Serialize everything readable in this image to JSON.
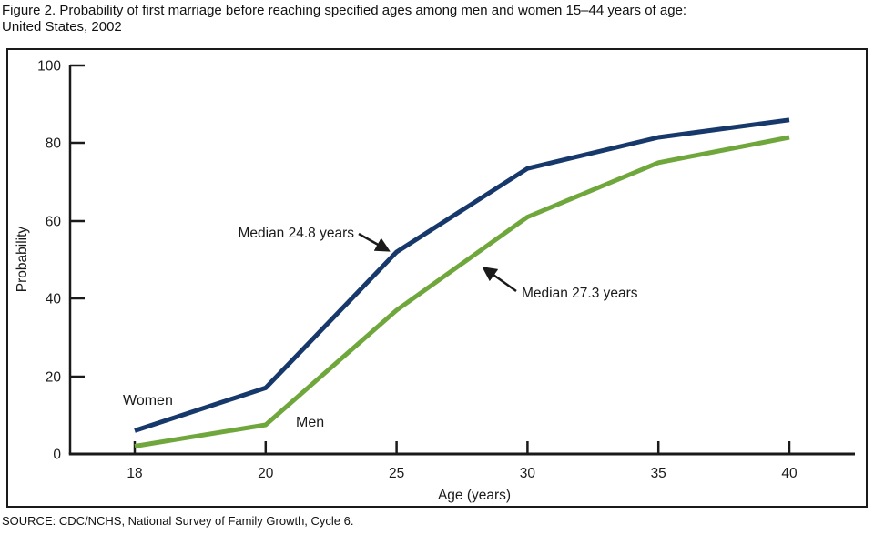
{
  "figure": {
    "title_line1": "Figure 2. Probability of first marriage before reaching specified ages among men and women 15–44 years of age:",
    "title_line2": "United States, 2002",
    "source": "SOURCE: CDC/NCHS, National Survey of Family Growth, Cycle 6."
  },
  "chart_data": {
    "type": "line",
    "title": "Figure 2. Probability of first marriage before reaching specified ages among men and women 15–44 years of age: United States, 2002",
    "xlabel": "Age (years)",
    "ylabel": "Probability",
    "x_tick_labels": [
      "18",
      "20",
      "25",
      "30",
      "35",
      "40"
    ],
    "x_axis_spacing": "categorical (ticks evenly spaced despite unequal year intervals)",
    "y_ticks": [
      0,
      20,
      40,
      60,
      80,
      100
    ],
    "ylim": [
      0,
      100
    ],
    "grid": false,
    "legend": "inline labels on lines",
    "series": [
      {
        "name": "Women",
        "color": "#16386b",
        "values": [
          6,
          17,
          52,
          73.5,
          81.5,
          86
        ]
      },
      {
        "name": "Men",
        "color": "#70a73d",
        "values": [
          2,
          7.5,
          37,
          61,
          75,
          81.5
        ]
      }
    ],
    "annotations": [
      {
        "text": "Median 24.8 years",
        "series": "Women",
        "points_to": {
          "age": 24.8,
          "probability": 50
        }
      },
      {
        "text": "Median 27.3 years",
        "series": "Men",
        "points_to": {
          "age": 27.3,
          "probability": 50
        }
      }
    ]
  }
}
